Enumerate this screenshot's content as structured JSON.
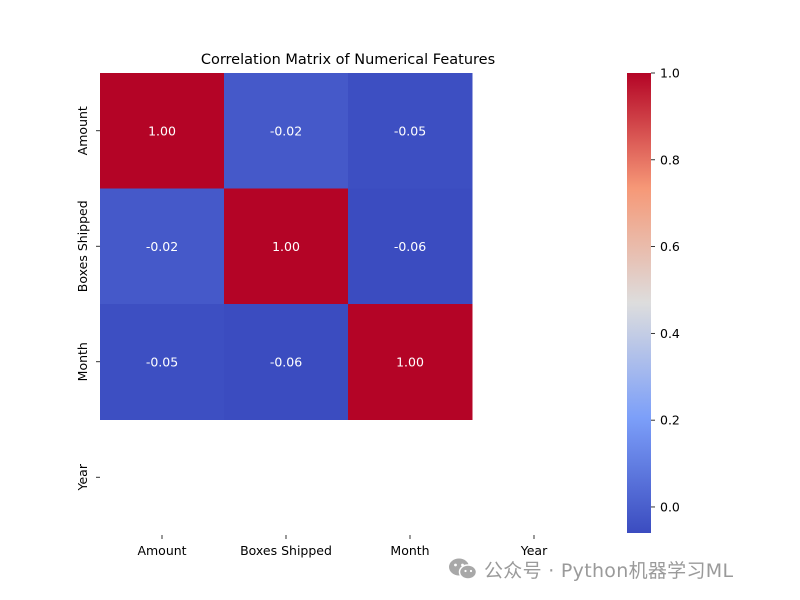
{
  "chart_data": {
    "type": "heatmap",
    "title": "Correlation Matrix of Numerical Features",
    "x_labels": [
      "Amount",
      "Boxes Shipped",
      "Month",
      "Year"
    ],
    "y_labels": [
      "Amount",
      "Boxes Shipped",
      "Month",
      "Year"
    ],
    "values": [
      [
        1.0,
        -0.02,
        -0.05,
        null
      ],
      [
        -0.02,
        1.0,
        -0.06,
        null
      ],
      [
        -0.05,
        -0.06,
        1.0,
        null
      ],
      [
        null,
        null,
        null,
        null
      ]
    ],
    "cell_labels": [
      [
        "1.00",
        "-0.02",
        "-0.05",
        ""
      ],
      [
        "-0.02",
        "1.00",
        "-0.06",
        ""
      ],
      [
        "-0.05",
        "-0.06",
        "1.00",
        ""
      ],
      [
        "",
        "",
        "",
        ""
      ]
    ],
    "colormap": "coolwarm",
    "colorbar": {
      "vmin": -0.06,
      "vmax": 1.0,
      "ticks": [
        0.0,
        0.2,
        0.4,
        0.6,
        0.8,
        1.0
      ],
      "tick_labels": [
        "0.0",
        "0.2",
        "0.4",
        "0.6",
        "0.8",
        "1.0"
      ]
    },
    "xlabel": "",
    "ylabel": ""
  },
  "watermark": {
    "text": "公众号 · Python机器学习ML",
    "icon": "wechat-icon"
  }
}
